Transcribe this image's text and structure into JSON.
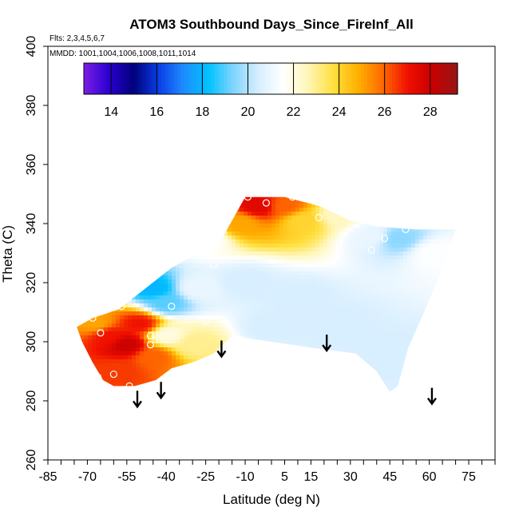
{
  "chart_data": {
    "type": "heatmap",
    "title": "ATOM3 Southbound Days_Since_FireInf_All",
    "flights_note": "Flts: 2,3,4,5,6,7",
    "dates_note": "MMDD: 1001,1004,1006,1008,1011,1014",
    "xlabel": "Latitude (deg N)",
    "ylabel": "Theta (C)",
    "xlim": [
      -85,
      85
    ],
    "ylim": [
      260,
      400
    ],
    "x_tick_labels": [
      "-85",
      "-70",
      "-55",
      "-40",
      "-25",
      "-10",
      "5",
      "15",
      "30",
      "45",
      "60",
      "75"
    ],
    "x_tick_values": [
      -85,
      -70,
      -55,
      -40,
      -25,
      -10,
      5,
      15,
      30,
      45,
      60,
      75
    ],
    "y_tick_labels": [
      "260",
      "280",
      "300",
      "320",
      "340",
      "360",
      "380",
      "400"
    ],
    "y_tick_values": [
      260,
      280,
      300,
      320,
      340,
      360,
      380,
      400
    ],
    "colorbar": {
      "range": [
        12.8,
        29.2
      ],
      "tick_labels": [
        "14",
        "16",
        "18",
        "20",
        "22",
        "24",
        "26",
        "28"
      ],
      "tick_values": [
        14,
        16,
        18,
        20,
        22,
        24,
        26,
        28
      ],
      "colors": [
        "#7b1fe6",
        "#2a00d0",
        "#00007a",
        "#0a3ee6",
        "#1e8cff",
        "#00c2ff",
        "#80d4ff",
        "#d6eeff",
        "#ffffff",
        "#fff6b8",
        "#ffe040",
        "#ffb000",
        "#ff6a00",
        "#f01000",
        "#c80000",
        "#961616"
      ]
    },
    "field_boundary": [
      [
        -68,
        308
      ],
      [
        -58,
        311
      ],
      [
        -48,
        318
      ],
      [
        -38,
        325
      ],
      [
        -28,
        330
      ],
      [
        -20,
        333
      ],
      [
        -10,
        349
      ],
      [
        5,
        349
      ],
      [
        18,
        346
      ],
      [
        30,
        341
      ],
      [
        40,
        339
      ],
      [
        55,
        338
      ],
      [
        70,
        338
      ],
      [
        65,
        325
      ],
      [
        58,
        310
      ],
      [
        52,
        298
      ],
      [
        48,
        285
      ],
      [
        45,
        283
      ],
      [
        40,
        290
      ],
      [
        32,
        296
      ],
      [
        15,
        298
      ],
      [
        0,
        300
      ],
      [
        -15,
        302
      ],
      [
        -22,
        296
      ],
      [
        -30,
        293
      ],
      [
        -38,
        291
      ],
      [
        -44,
        287
      ],
      [
        -52,
        285
      ],
      [
        -60,
        285
      ],
      [
        -64,
        287
      ],
      [
        -68,
        293
      ],
      [
        -72,
        300
      ],
      [
        -74,
        305
      ]
    ],
    "field_values": [
      {
        "lat": -62,
        "theta": 302,
        "days": 27
      },
      {
        "lat": -55,
        "theta": 299,
        "days": 28
      },
      {
        "lat": -58,
        "theta": 290,
        "days": 26.5
      },
      {
        "lat": -67,
        "theta": 306,
        "days": 25
      },
      {
        "lat": -50,
        "theta": 306,
        "days": 27
      },
      {
        "lat": -45,
        "theta": 295,
        "days": 26
      },
      {
        "lat": -40,
        "theta": 302,
        "days": 22
      },
      {
        "lat": -30,
        "theta": 299,
        "days": 23
      },
      {
        "lat": -45,
        "theta": 318,
        "days": 18
      },
      {
        "lat": -40,
        "theta": 313,
        "days": 19
      },
      {
        "lat": -28,
        "theta": 318,
        "days": 21
      },
      {
        "lat": -25,
        "theta": 335,
        "days": 21.5
      },
      {
        "lat": -12,
        "theta": 340,
        "days": 25
      },
      {
        "lat": -5,
        "theta": 346,
        "days": 27.5
      },
      {
        "lat": 5,
        "theta": 346,
        "days": 26
      },
      {
        "lat": 12,
        "theta": 341,
        "days": 24
      },
      {
        "lat": 25,
        "theta": 343,
        "days": 22.5
      },
      {
        "lat": 38,
        "theta": 336,
        "days": 21
      },
      {
        "lat": 48,
        "theta": 335,
        "days": 19.5
      },
      {
        "lat": 62,
        "theta": 330,
        "days": 21.5
      },
      {
        "lat": -10,
        "theta": 320,
        "days": 20.5
      },
      {
        "lat": 10,
        "theta": 315,
        "days": 20.5
      },
      {
        "lat": 25,
        "theta": 305,
        "days": 20.5
      },
      {
        "lat": 45,
        "theta": 295,
        "days": 20.5
      },
      {
        "lat": 0,
        "theta": 305,
        "days": 20.5
      }
    ],
    "sample_points": [
      [
        -65,
        303
      ],
      [
        -60,
        289
      ],
      [
        -66,
        288
      ],
      [
        -57,
        312
      ],
      [
        -68,
        308
      ],
      [
        -54,
        285
      ],
      [
        -46,
        302
      ],
      [
        -46,
        299
      ],
      [
        -44,
        325
      ],
      [
        -38,
        312
      ],
      [
        -25,
        307
      ],
      [
        -22,
        326
      ],
      [
        -9,
        349
      ],
      [
        -2,
        347
      ],
      [
        8,
        349
      ],
      [
        18,
        342
      ],
      [
        27,
        346
      ],
      [
        38,
        331
      ],
      [
        43,
        335
      ],
      [
        51,
        338
      ]
    ],
    "arrows": [
      {
        "lat": -51,
        "theta": 278
      },
      {
        "lat": -42,
        "theta": 281
      },
      {
        "lat": -19,
        "theta": 295
      },
      {
        "lat": 21,
        "theta": 297
      },
      {
        "lat": 61,
        "theta": 279
      }
    ]
  }
}
